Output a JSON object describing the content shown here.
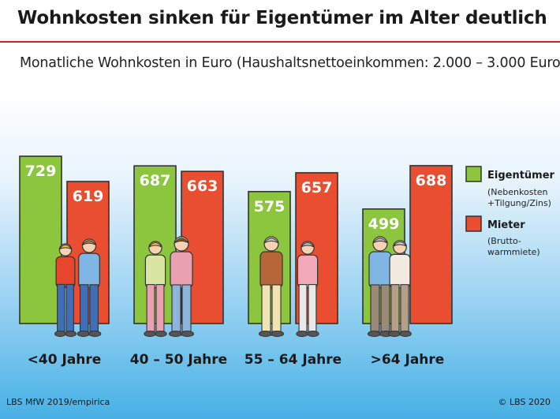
{
  "header": {
    "title": "Wohnkosten sinken für Eigentümer im Alter deutlich",
    "subtitle": "Monatliche Wohnkosten in Euro (Haushaltsnettoeinkommen: 2.000 – 3.000 Euro)"
  },
  "footer": {
    "source": "LBS MfW 2019/empirica",
    "copyright": "© LBS 2020"
  },
  "legend": {
    "owner_label": "Eigentümer",
    "owner_note_1": "(Nebenkosten",
    "owner_note_2": "+Tilgung/Zins)",
    "renter_label": "Mieter",
    "renter_note_1": "(Brutto-",
    "renter_note_2": "warmmiete)"
  },
  "colors": {
    "owner": "#8cc63f",
    "renter": "#e84e2f",
    "bar_outline": "#333333",
    "accent_rule": "#d2232a"
  },
  "chart_data": {
    "type": "bar",
    "title": "Wohnkosten sinken für Eigentümer im Alter deutlich",
    "subtitle": "Monatliche Wohnkosten in Euro (Haushaltsnettoeinkommen: 2.000 – 3.000 Euro)",
    "categories": [
      "<40 Jahre",
      "40 – 50 Jahre",
      "55 – 64 Jahre",
      ">64 Jahre"
    ],
    "series": [
      {
        "name": "Eigentümer",
        "values": [
          729,
          687,
          575,
          499
        ]
      },
      {
        "name": "Mieter",
        "values": [
          619,
          663,
          657,
          688
        ]
      }
    ],
    "ylim": [
      0,
      729
    ],
    "xlabel": "",
    "ylabel": "",
    "grid": false,
    "legend_position": "right"
  }
}
